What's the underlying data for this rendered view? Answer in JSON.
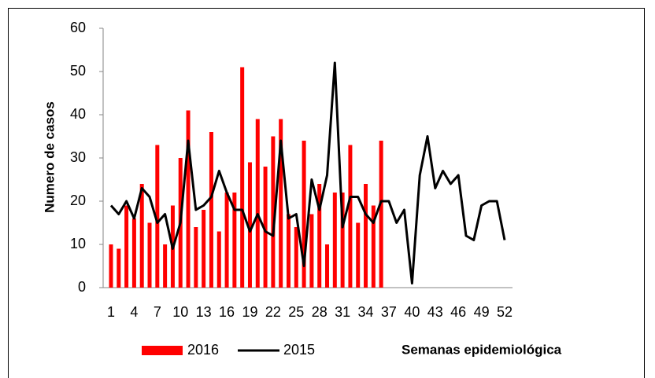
{
  "chart_data": {
    "type": "bar_line",
    "y_label": "Numero de casos",
    "x_label": "Semanas epidemiológica",
    "categories": [
      "1",
      null,
      null,
      "4",
      null,
      null,
      "7",
      null,
      null,
      "10",
      null,
      null,
      "13",
      null,
      null,
      "16",
      null,
      null,
      "19",
      null,
      null,
      "22",
      null,
      null,
      "25",
      null,
      null,
      "28",
      null,
      null,
      "31",
      null,
      null,
      "34",
      null,
      null,
      "37",
      null,
      null,
      "40",
      null,
      null,
      "43",
      null,
      null,
      "46",
      null,
      null,
      "49",
      null,
      null,
      "52"
    ],
    "series": [
      {
        "name": "2016",
        "type": "bar",
        "color": "#ff0000",
        "values": [
          10,
          9,
          19,
          16,
          24,
          15,
          33,
          10,
          19,
          30,
          41,
          14,
          18,
          36,
          13,
          22,
          22,
          51,
          29,
          39,
          28,
          35,
          39,
          17,
          14,
          34,
          17,
          24,
          10,
          22,
          22,
          33,
          15,
          24,
          19,
          34,
          null,
          null,
          null,
          null,
          null,
          null,
          null,
          null,
          null,
          null,
          null,
          null,
          null,
          null,
          null,
          null
        ]
      },
      {
        "name": "2015",
        "type": "line",
        "color": "#000000",
        "values": [
          19,
          17,
          20,
          16,
          23,
          21,
          15,
          17,
          9,
          15,
          34,
          18,
          19,
          21,
          27,
          22,
          18,
          18,
          13,
          17,
          13,
          12,
          34,
          16,
          17,
          5,
          25,
          18,
          26,
          52,
          14,
          21,
          21,
          17,
          15,
          20,
          20,
          15,
          18,
          1,
          26,
          35,
          23,
          27,
          24,
          26,
          12,
          11,
          19,
          20,
          20,
          11
        ]
      }
    ],
    "ylim": [
      0,
      60
    ],
    "yticks": [
      0,
      10,
      20,
      30,
      40,
      50,
      60
    ]
  }
}
